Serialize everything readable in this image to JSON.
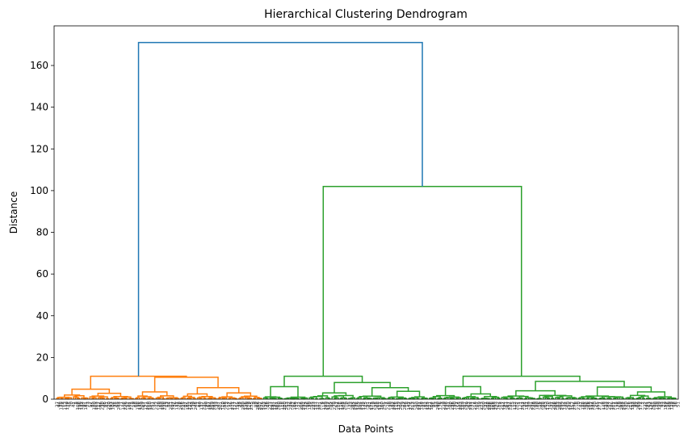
{
  "chart_data": {
    "type": "dendrogram",
    "title": "Hierarchical Clustering Dendrogram",
    "xlabel": "Data Points",
    "ylabel": "Distance",
    "ylim": [
      0,
      179
    ],
    "yticks": [
      0,
      20,
      40,
      60,
      80,
      100,
      120,
      140,
      160
    ],
    "grid": false,
    "colors": {
      "root": "#1f77b4",
      "cluster_orange": "#ff7f0e",
      "cluster_green": "#2ca02c"
    },
    "leaf_count": 300,
    "root": {
      "height": 171,
      "children": [
        "orange",
        "green"
      ],
      "color": "#1f77b4"
    },
    "clusters": [
      {
        "id": "orange",
        "color": "#ff7f0e",
        "height": 11,
        "leaf_range": [
          0,
          100
        ],
        "merges": [
          {
            "height": 11,
            "left": [
              0,
              38
            ],
            "right": [
              38,
              100
            ]
          },
          {
            "height": 4.8,
            "left": [
              0,
              16
            ],
            "right": [
              16,
              38
            ]
          },
          {
            "height": 10.5,
            "left": [
              38,
              60
            ],
            "right": [
              60,
              100
            ]
          },
          {
            "height": 5.5,
            "left": [
              60,
              78
            ],
            "right": [
              78,
              100
            ]
          },
          {
            "height": 3.5,
            "left": [
              38,
              48
            ],
            "right": [
              48,
              60
            ]
          },
          {
            "height": 3.0,
            "left": [
              78,
              88
            ],
            "right": [
              88,
              100
            ]
          },
          {
            "height": 2.5,
            "left": [
              60,
              68
            ],
            "right": [
              68,
              78
            ]
          },
          {
            "height": 2.8,
            "left": [
              16,
              26
            ],
            "right": [
              26,
              38
            ]
          },
          {
            "height": 2.0,
            "left": [
              0,
              8
            ],
            "right": [
              8,
              16
            ]
          }
        ]
      },
      {
        "id": "green",
        "color": "#2ca02c",
        "height": 102,
        "leaf_range": [
          100,
          300
        ],
        "merges": [
          {
            "height": 102,
            "left": [
              100,
              180
            ],
            "right": [
              180,
              300
            ]
          },
          {
            "height": 11,
            "left": [
              100,
              122
            ],
            "right": [
              122,
              180
            ]
          },
          {
            "height": 8,
            "left": [
              122,
              145
            ],
            "right": [
              145,
              180
            ]
          },
          {
            "height": 6,
            "left": [
              100,
              110
            ],
            "right": [
              110,
              122
            ]
          },
          {
            "height": 5.5,
            "left": [
              145,
              160
            ],
            "right": [
              160,
              180
            ]
          },
          {
            "height": 3.8,
            "left": [
              160,
              170
            ],
            "right": [
              170,
              180
            ]
          },
          {
            "height": 3.0,
            "left": [
              122,
              133
            ],
            "right": [
              133,
              145
            ]
          },
          {
            "height": 11,
            "left": [
              180,
              215
            ],
            "right": [
              215,
              300
            ]
          },
          {
            "height": 6,
            "left": [
              180,
              196
            ],
            "right": [
              196,
              215
            ]
          },
          {
            "height": 8.5,
            "left": [
              215,
              252
            ],
            "right": [
              252,
              300
            ]
          },
          {
            "height": 5.8,
            "left": [
              252,
              275
            ],
            "right": [
              275,
              300
            ]
          },
          {
            "height": 3.5,
            "left": [
              275,
              288
            ],
            "right": [
              288,
              300
            ]
          },
          {
            "height": 4.0,
            "left": [
              215,
              232
            ],
            "right": [
              232,
              252
            ]
          },
          {
            "height": 2.5,
            "left": [
              196,
              205
            ],
            "right": [
              205,
              215
            ]
          }
        ]
      }
    ],
    "leaf_labels": [
      "37",
      "94",
      "138",
      "14",
      "113",
      "179",
      "45",
      "70",
      "41",
      "5",
      "108",
      "196",
      "132",
      "97",
      "181",
      "73",
      "57",
      "85",
      "140",
      "163",
      "117",
      "66",
      "230",
      "46",
      "81",
      "220",
      "193",
      "104",
      "35",
      "65",
      "243",
      "71",
      "144",
      "226",
      "52",
      "101",
      "275",
      "19",
      "68",
      "198",
      "135",
      "209",
      "67",
      "121",
      "210",
      "150",
      "251",
      "74",
      "272",
      "20",
      "169",
      "100",
      "238",
      "13",
      "84",
      "241",
      "197",
      "76",
      "131",
      "28",
      "216",
      "225",
      "87",
      "185",
      "222",
      "143",
      "39",
      "245",
      "11",
      "60",
      "137",
      "235",
      "90",
      "167",
      "184",
      "259",
      "283",
      "33",
      "247",
      "201",
      "110",
      "58",
      "212",
      "17",
      "146",
      "271",
      "127",
      "155",
      "38",
      "64",
      "240",
      "156",
      "249",
      "119",
      "255",
      "9",
      "89",
      "266",
      "207",
      "276",
      "103",
      "126",
      "48",
      "227",
      "297",
      "192",
      "161",
      "260",
      "10",
      "118",
      "280",
      "253",
      "32",
      "229",
      "42",
      "166",
      "177",
      "22",
      "208",
      "292",
      "173",
      "86",
      "130",
      "54",
      "223",
      "187",
      "147",
      "281",
      "6",
      "114",
      "289",
      "112",
      "205",
      "44",
      "279",
      "62",
      "214",
      "116",
      "148",
      "264",
      "0",
      "195",
      "43",
      "285",
      "294",
      "176",
      "102",
      "242",
      "133",
      "125",
      "91",
      "261",
      "175",
      "219",
      "25",
      "268",
      "111",
      "160",
      "295",
      "7",
      "278",
      "30",
      "183",
      "246",
      "115",
      "139",
      "204",
      "79",
      "284",
      "18",
      "142",
      "274",
      "213",
      "55",
      "290",
      "231",
      "158",
      "27",
      "182",
      "123",
      "221",
      "164",
      "95",
      "53",
      "290",
      "136",
      "3",
      "239",
      "298",
      "141",
      "80",
      "236",
      "190",
      "72",
      "154",
      "203",
      "189",
      "287",
      "29",
      "262",
      "237",
      "77",
      "218",
      "107",
      "59",
      "273",
      "200",
      "21",
      "248",
      "286",
      "106",
      "168",
      "293",
      "162",
      "12",
      "217",
      "194",
      "61",
      "267",
      "224",
      "75",
      "122",
      "282",
      "1",
      "171",
      "252",
      "34",
      "151",
      "99",
      "291",
      "228",
      "49",
      "180",
      "16",
      "244",
      "88",
      "263",
      "170",
      "145",
      "31",
      "256",
      "206",
      "83",
      "202",
      "299",
      "134",
      "24",
      "250",
      "174",
      "157",
      "296",
      "8",
      "270",
      "47",
      "188",
      "105",
      "96",
      "258",
      "152",
      "234",
      "50",
      "165",
      "277",
      "4",
      "128",
      "233",
      "92",
      "257",
      "186",
      "211",
      "15",
      "178",
      "69",
      "288",
      "254",
      "120",
      "26",
      "215",
      "153",
      "98",
      "82",
      "269",
      "172",
      "2",
      "232",
      "191",
      "63",
      "124",
      "265",
      "40",
      "149",
      "199",
      "93",
      "23",
      "159",
      "56",
      "109",
      "129",
      "78",
      "36",
      "51"
    ]
  }
}
